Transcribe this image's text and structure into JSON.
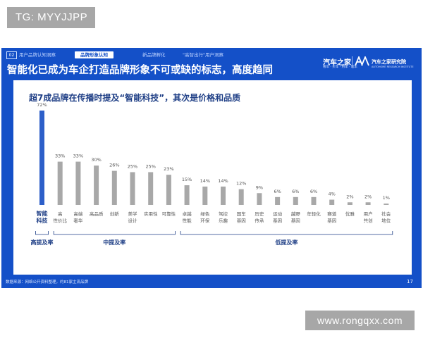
{
  "watermarks": {
    "top_left": "TG: MYYJJPP",
    "bottom_right": "www.rongqxx.com"
  },
  "slide": {
    "nav": {
      "number": "02",
      "tabs": [
        "用户品牌认知洞察",
        "品牌形象认知",
        "新品牌孵化",
        "\"高智出行\"用户洞察"
      ],
      "active_index": 1
    },
    "headline": "智能化已成为车企打造品牌形象不可或缺的标志，高度趋同",
    "logos": {
      "autohome": "汽车之家",
      "autohome_sub": "看车 · 买车 · 用车 · 玩车",
      "research": "汽车之家研究院",
      "research_sub": "AUTOHOME RESEARCH INSTITUTE"
    },
    "footer_source": "数据来源：网络公开资料整理，约81家主流品牌",
    "page_number": "17"
  },
  "chart_data": {
    "type": "bar",
    "title": "超7成品牌在传播时提及“智能科技”，其次是价格和品质",
    "categories": [
      "智能\n科技",
      "高\n性价比",
      "高端\n奢华",
      "高品质",
      "创新",
      "美学\n设计",
      "实用性",
      "可靠性",
      "卓越\n性能",
      "绿色\n环保",
      "驾控\n乐趣",
      "国车\n基因",
      "历史\n传承",
      "运动\n基因",
      "越野\n基因",
      "年轻化",
      "赛道\n基因",
      "优雅",
      "用户\n共创",
      "社会\n地位"
    ],
    "values": [
      72,
      33,
      33,
      30,
      26,
      25,
      25,
      23,
      15,
      14,
      14,
      12,
      9,
      6,
      6,
      6,
      4,
      2,
      2,
      1
    ],
    "value_labels": [
      "72%",
      "33%",
      "33%",
      "30%",
      "26%",
      "25%",
      "25%",
      "23%",
      "15%",
      "14%",
      "14%",
      "12%",
      "9%",
      "6%",
      "6%",
      "6%",
      "4%",
      "2%",
      "2%",
      "1%"
    ],
    "ylim": [
      0,
      72
    ],
    "grid": false,
    "colors": {
      "highlight": "#2d5fc9",
      "default": "#a8a8a8",
      "label_highlight": "#1f3f86",
      "label_default": "#555555"
    },
    "groups": [
      {
        "label": "高提及率",
        "start": 0,
        "end": 0
      },
      {
        "label": "中提及率",
        "start": 1,
        "end": 7
      },
      {
        "label": "低提及率",
        "start": 8,
        "end": 19
      }
    ]
  }
}
